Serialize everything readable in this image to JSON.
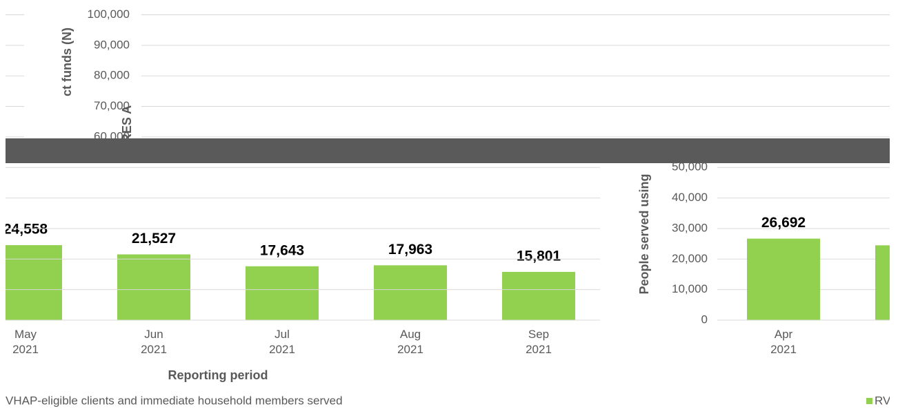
{
  "chart_data": [
    {
      "type": "bar",
      "ylabel": "ct funds (N)",
      "annotation": "RES A",
      "xlabel": "Reporting period",
      "legend": "VHAP-eligible clients and immediate household members served",
      "categories": [
        "May 2021",
        "Jun 2021",
        "Jul 2021",
        "Aug 2021",
        "Sep 2021"
      ],
      "values": [
        24558,
        21527,
        17643,
        17963,
        15801
      ],
      "value_labels": [
        "24,558",
        "21,527",
        "17,643",
        "17,963",
        "15,801"
      ],
      "color": "#92d050",
      "ylim": [
        0,
        100000
      ],
      "yticks": [
        {
          "value": 60000,
          "label": "60,000"
        },
        {
          "value": 70000,
          "label": "70,000"
        },
        {
          "value": 80000,
          "label": "80,000"
        },
        {
          "value": 90000,
          "label": "90,000"
        },
        {
          "value": 100000,
          "label": "100,000"
        }
      ],
      "grid": true
    },
    {
      "type": "bar",
      "ylabel": "People served using",
      "legend": "RV",
      "categories": [
        "Apr 2021",
        null
      ],
      "values": [
        26692,
        24500
      ],
      "value_labels": [
        "26,692",
        null
      ],
      "color": "#92d050",
      "ylim": [
        0,
        100000
      ],
      "yticks": [
        0,
        {
          "value": 10000,
          "label": "10,000"
        },
        {
          "value": 20000,
          "label": "20,000"
        },
        {
          "value": 30000,
          "label": "30,000"
        },
        {
          "value": 40000,
          "label": "40,000"
        },
        {
          "value": 50000,
          "label": "50,000"
        }
      ],
      "grid": true
    }
  ]
}
